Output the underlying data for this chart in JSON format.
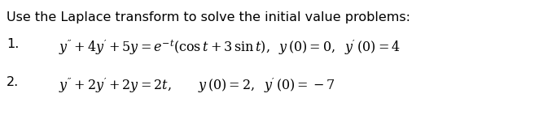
{
  "title": "Use the Laplace transform to solve the initial value problems:",
  "background_color": "#ffffff",
  "text_color": "#000000",
  "title_fontsize": 11.5,
  "eq_fontsize": 11.5,
  "line1_label": "1.",
  "line1_eq": "$y'' + 4y' + 5y = e^{-t}(\\mathrm{cos}\\,t + 3\\,\\mathrm{sin}\\,t),\\;\\; y\\,(0) = 0,\\;\\; y'\\,(0) = 4$",
  "line2_label": "2.",
  "line2_eq": "$y'' + 2y' + 2y = 2t, \\qquad y\\,(0) = 2, \\;\\; y'\\,(0) = -7$",
  "figsize": [
    6.78,
    1.42
  ],
  "dpi": 100
}
